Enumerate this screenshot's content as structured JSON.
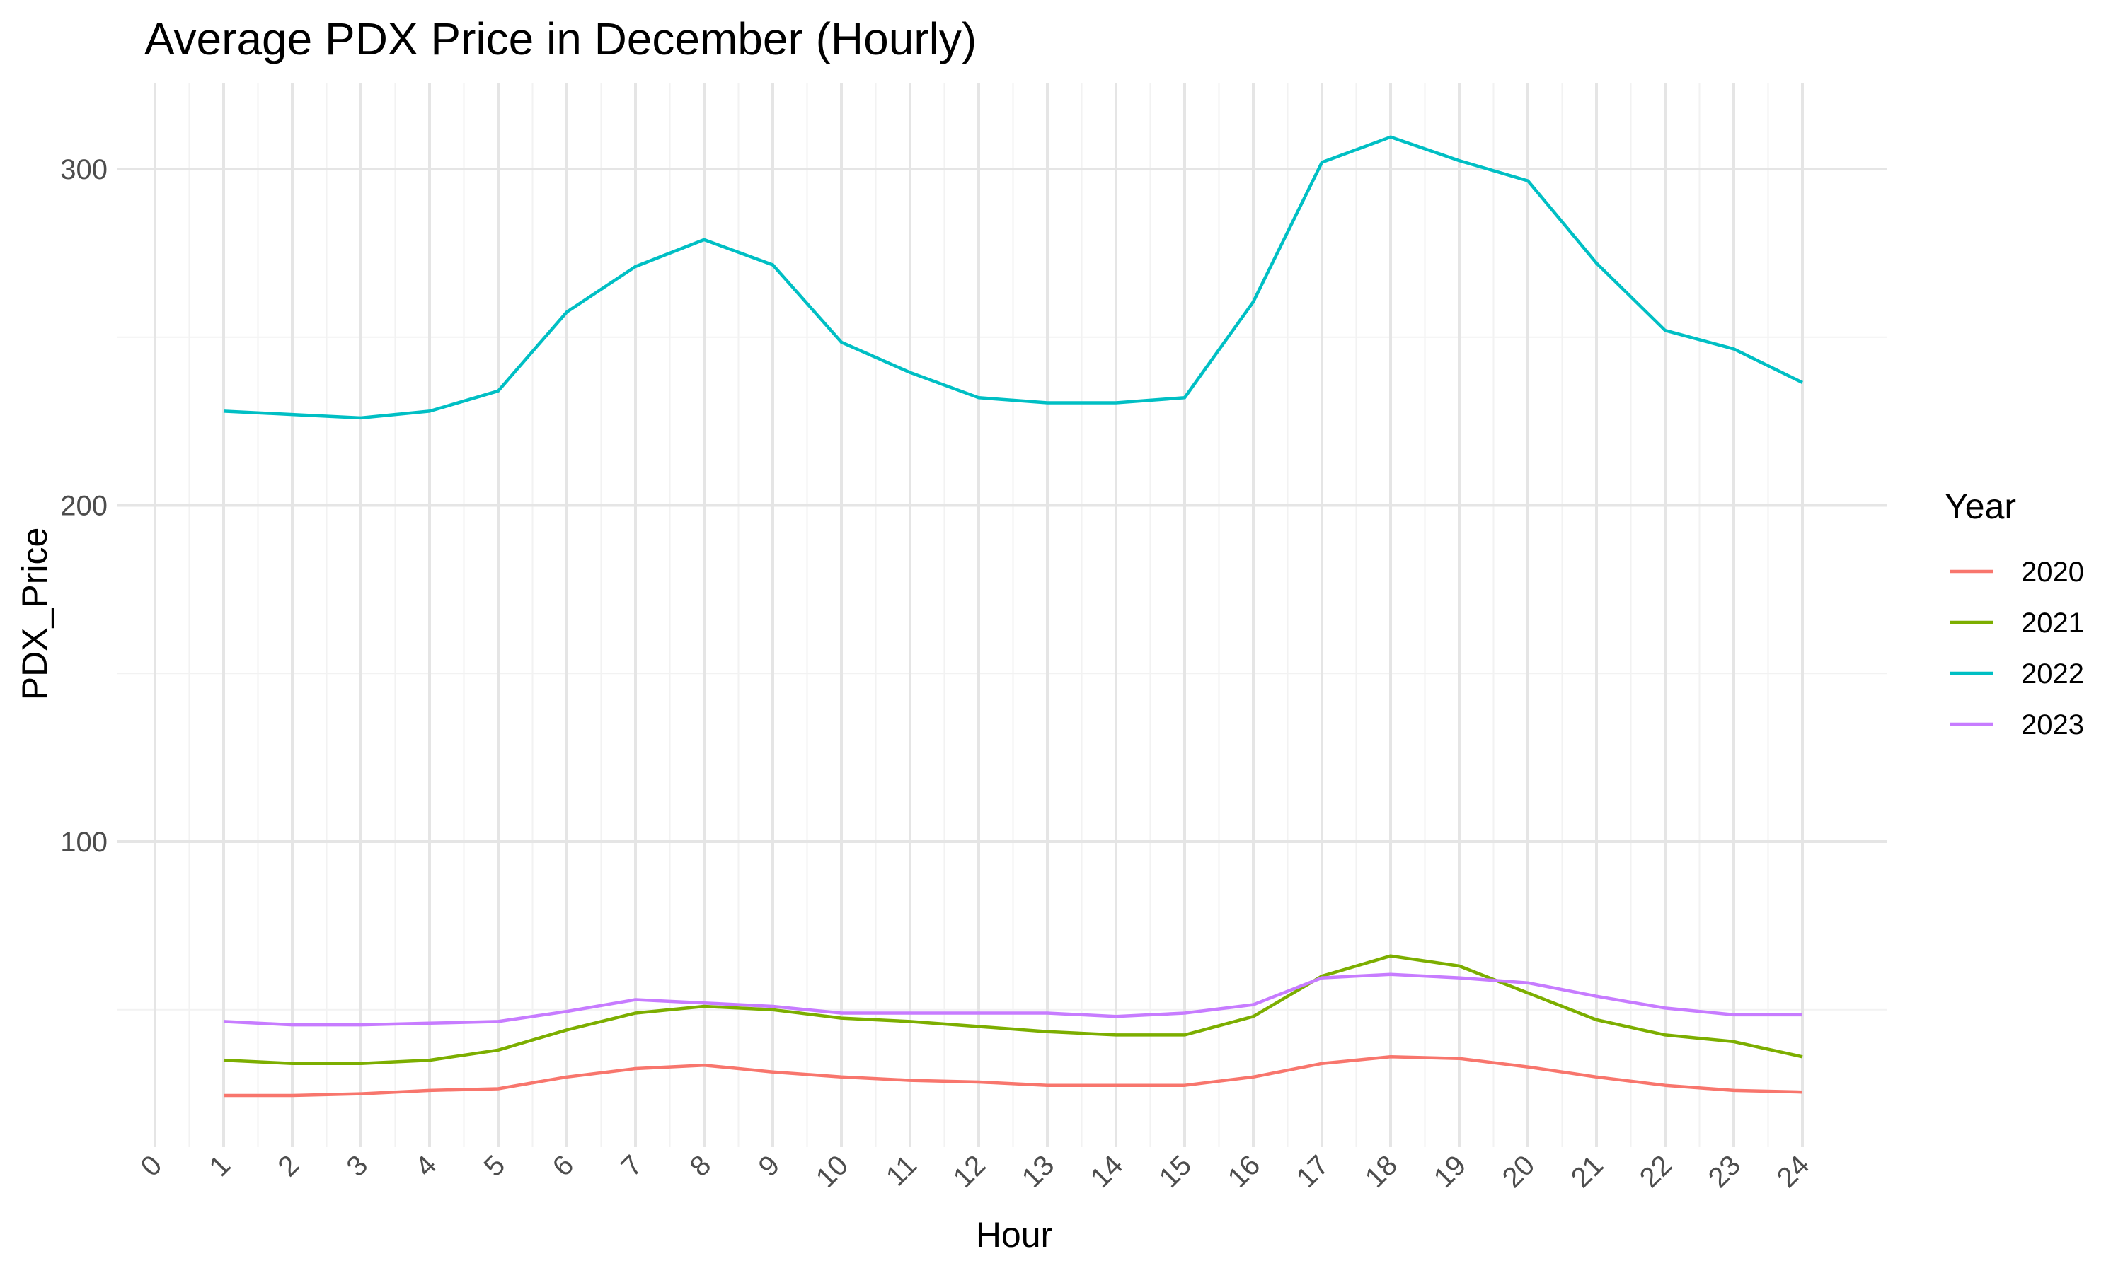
{
  "chart_data": {
    "type": "line",
    "title": "Average PDX Price in December (Hourly)",
    "xlabel": "Hour",
    "ylabel": "PDX_Price",
    "x_ticks": [
      "0",
      "1",
      "2",
      "3",
      "4",
      "5",
      "6",
      "7",
      "8",
      "9",
      "10",
      "11",
      "12",
      "13",
      "14",
      "15",
      "16",
      "17",
      "18",
      "19",
      "20",
      "21",
      "22",
      "23",
      "24"
    ],
    "y_ticks": [
      "100",
      "200",
      "300"
    ],
    "xlim": [
      0,
      24
    ],
    "ylim": [
      10,
      324
    ],
    "grid": true,
    "legend_title": "Year",
    "legend_position": "right",
    "x": [
      1,
      2,
      3,
      4,
      5,
      6,
      7,
      8,
      9,
      10,
      11,
      12,
      13,
      14,
      15,
      16,
      17,
      18,
      19,
      20,
      21,
      22,
      23,
      24
    ],
    "series": [
      {
        "name": "2020",
        "color": "#F8766D",
        "values": [
          24.5,
          24.5,
          25,
          26,
          26.5,
          30,
          32.5,
          33.5,
          31.5,
          30,
          29,
          28.5,
          27.5,
          27.5,
          27.5,
          30,
          34,
          36,
          35.5,
          33,
          30,
          27.5,
          26,
          25.5
        ]
      },
      {
        "name": "2021",
        "color": "#7CAE00",
        "values": [
          35,
          34,
          34,
          35,
          38,
          44,
          49,
          51,
          50,
          47.5,
          46.5,
          45,
          43.5,
          42.5,
          42.5,
          48,
          60,
          66,
          63,
          55,
          47,
          42.5,
          40.5,
          36
        ]
      },
      {
        "name": "2022",
        "color": "#00BFC4",
        "values": [
          228,
          227,
          226,
          228,
          234,
          257.5,
          271,
          279,
          271.5,
          248.5,
          239.5,
          232,
          230.5,
          230.5,
          232,
          260.5,
          302,
          309.5,
          302.5,
          296.5,
          272,
          252,
          246.5,
          236.5
        ]
      },
      {
        "name": "2023",
        "color": "#C77CFF",
        "values": [
          46.5,
          45.5,
          45.5,
          46,
          46.5,
          49.5,
          53,
          52,
          51,
          49,
          49,
          49,
          49,
          48,
          49,
          51.5,
          59.5,
          60.5,
          59.5,
          58,
          54,
          50.5,
          48.5,
          48.5
        ]
      }
    ]
  }
}
